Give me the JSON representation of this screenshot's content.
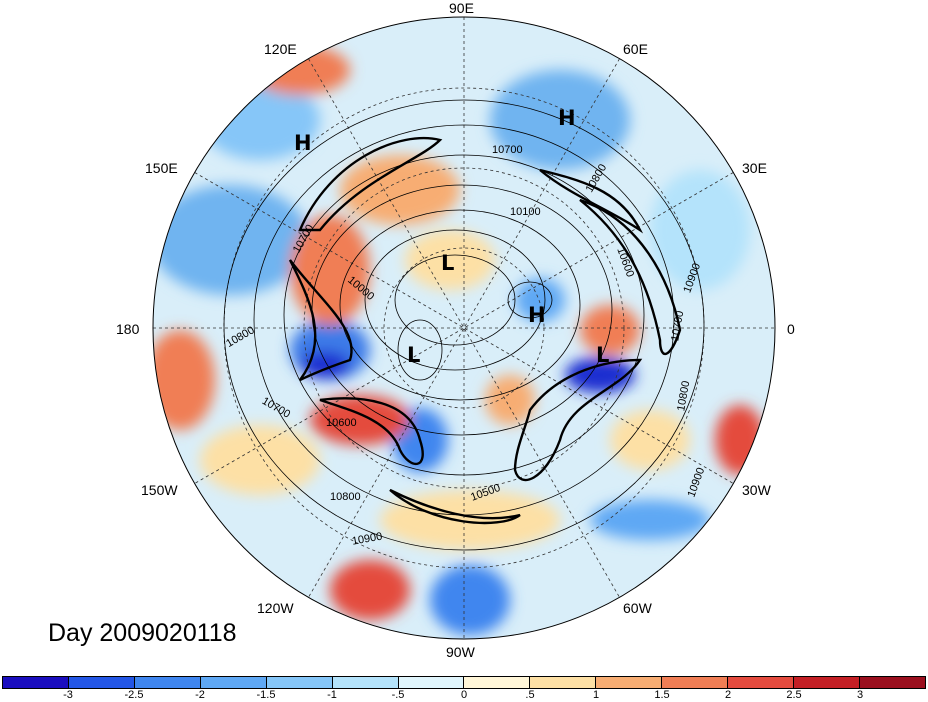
{
  "title": "Day 2009020118",
  "lon_labels": {
    "e90": "90E",
    "e60": "60E",
    "e30": "30E",
    "zero": "0",
    "w30": "30W",
    "w60": "60W",
    "w90": "90W",
    "w120": "120W",
    "w150": "150W",
    "d180": "180",
    "e150": "150E",
    "e120": "120E"
  },
  "pressure_centers": [
    "H",
    "H",
    "L",
    "H",
    "L",
    "L"
  ],
  "contour_labels": [
    "10700",
    "10800",
    "10100",
    "10600",
    "10900",
    "10700",
    "10000",
    "10800",
    "10700",
    "10600",
    "10800",
    "10900",
    "10500",
    "10900",
    "10800",
    "10700"
  ],
  "colorbar": {
    "colors": [
      "#1a0dbf",
      "#2356e6",
      "#3f86ef",
      "#5fa8f4",
      "#86c6f8",
      "#b4e3fb",
      "#e0f5fc",
      "#fff6d8",
      "#fde0a5",
      "#f7ad73",
      "#f07e55",
      "#e44b3e",
      "#c41f25",
      "#9b0f1e"
    ],
    "labels": [
      "-3",
      "-2.5",
      "-2",
      "-1.5",
      "-1",
      "-.5",
      "0",
      ".5",
      "1",
      "1.5",
      "2",
      "2.5",
      "3"
    ]
  }
}
